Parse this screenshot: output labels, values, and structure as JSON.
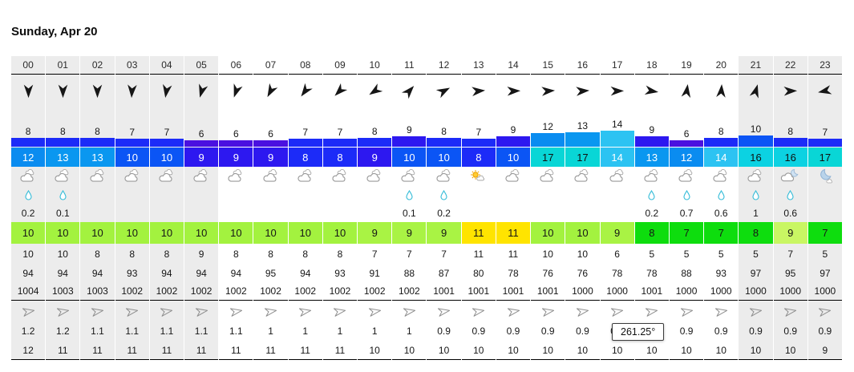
{
  "title": "Sunday, Apr 20",
  "tooltip": "261.25°",
  "palette": {
    "night_bg": "#ececec",
    "drop_color": "#35bcd8",
    "wind_speed_colors": {
      "6": "#4a10e0",
      "7": "#1c2bf8",
      "8": "#1c2bf8",
      "9": "#2d18f0",
      "10": "#0b55f5",
      "12": "#0a8cf0",
      "13": "#0a97f0",
      "14": "#2cc3f2",
      "16": "#0cd2e2",
      "17": "#09d6d6"
    },
    "gust_dark_text_min": 16,
    "temp_colors": {
      "7": "#0edd0e",
      "8": "#0edd0e",
      "9": "#a9f344",
      "10": "#a3f23f",
      "11": "#ffe400"
    }
  },
  "rows": {
    "wind_unit_note": "wind and gust in knots, bar height encodes wind speed",
    "rain_unit_note": "precipitation mm",
    "wave_note": "wave height m over wave period s"
  },
  "columns": [
    {
      "hour": "00",
      "night": true,
      "arrow_deg": 180,
      "wind": 8,
      "gust": 12,
      "cloud": "cloudy",
      "rain": "0.2",
      "temp": 10,
      "feels": 10,
      "humidity": 94,
      "pressure": 1004,
      "wave_deg": 80,
      "wave_height": "1.2",
      "wave_period": 12
    },
    {
      "hour": "01",
      "night": true,
      "arrow_deg": 180,
      "wind": 8,
      "gust": 13,
      "cloud": "cloudy",
      "rain": "0.1",
      "temp": 10,
      "feels": 10,
      "humidity": 94,
      "pressure": 1003,
      "wave_deg": 80,
      "wave_height": "1.2",
      "wave_period": 11
    },
    {
      "hour": "02",
      "night": true,
      "arrow_deg": 180,
      "wind": 8,
      "gust": 13,
      "cloud": "cloudy",
      "rain": "",
      "temp": 10,
      "feels": 8,
      "humidity": 94,
      "pressure": 1003,
      "wave_deg": 80,
      "wave_height": "1.1",
      "wave_period": 11
    },
    {
      "hour": "03",
      "night": true,
      "arrow_deg": 183,
      "wind": 7,
      "gust": 10,
      "cloud": "cloudy",
      "rain": "",
      "temp": 10,
      "feels": 8,
      "humidity": 93,
      "pressure": 1002,
      "wave_deg": 80,
      "wave_height": "1.1",
      "wave_period": 11
    },
    {
      "hour": "04",
      "night": true,
      "arrow_deg": 189,
      "wind": 7,
      "gust": 10,
      "cloud": "cloudy",
      "rain": "",
      "temp": 10,
      "feels": 8,
      "humidity": 94,
      "pressure": 1002,
      "wave_deg": 80,
      "wave_height": "1.1",
      "wave_period": 11
    },
    {
      "hour": "05",
      "night": true,
      "arrow_deg": 196,
      "wind": 6,
      "gust": 9,
      "cloud": "cloudy",
      "rain": "",
      "temp": 10,
      "feels": 9,
      "humidity": 94,
      "pressure": 1002,
      "wave_deg": 80,
      "wave_height": "1.1",
      "wave_period": 11
    },
    {
      "hour": "06",
      "night": false,
      "arrow_deg": 199,
      "wind": 6,
      "gust": 9,
      "cloud": "cloudy",
      "rain": "",
      "temp": 10,
      "feels": 8,
      "humidity": 94,
      "pressure": 1002,
      "wave_deg": 80,
      "wave_height": "1.1",
      "wave_period": 11
    },
    {
      "hour": "07",
      "night": false,
      "arrow_deg": 208,
      "wind": 6,
      "gust": 9,
      "cloud": "cloudy",
      "rain": "",
      "temp": 10,
      "feels": 8,
      "humidity": 95,
      "pressure": 1002,
      "wave_deg": 80,
      "wave_height": "1",
      "wave_period": 11
    },
    {
      "hour": "08",
      "night": false,
      "arrow_deg": 216,
      "wind": 7,
      "gust": 8,
      "cloud": "cloudy",
      "rain": "",
      "temp": 10,
      "feels": 8,
      "humidity": 94,
      "pressure": 1002,
      "wave_deg": 80,
      "wave_height": "1",
      "wave_period": 11
    },
    {
      "hour": "09",
      "night": false,
      "arrow_deg": 225,
      "wind": 7,
      "gust": 8,
      "cloud": "cloudy",
      "rain": "",
      "temp": 10,
      "feels": 8,
      "humidity": 93,
      "pressure": 1002,
      "wave_deg": 80,
      "wave_height": "1",
      "wave_period": 11
    },
    {
      "hour": "10",
      "night": false,
      "arrow_deg": 236,
      "wind": 8,
      "gust": 9,
      "cloud": "cloudy",
      "rain": "",
      "temp": 9,
      "feels": 7,
      "humidity": 91,
      "pressure": 1002,
      "wave_deg": 80,
      "wave_height": "1",
      "wave_period": 10
    },
    {
      "hour": "11",
      "night": false,
      "arrow_deg": 42,
      "wind": 9,
      "gust": 10,
      "cloud": "cloudy",
      "rain": "0.1",
      "temp": 9,
      "feels": 7,
      "humidity": 88,
      "pressure": 1002,
      "wave_deg": 80,
      "wave_height": "1",
      "wave_period": 10
    },
    {
      "hour": "12",
      "night": false,
      "arrow_deg": 62,
      "wind": 8,
      "gust": 10,
      "cloud": "cloudy",
      "rain": "0.2",
      "temp": 9,
      "feels": 7,
      "humidity": 87,
      "pressure": 1001,
      "wave_deg": 80,
      "wave_height": "0.9",
      "wave_period": 10
    },
    {
      "hour": "13",
      "night": false,
      "arrow_deg": 85,
      "wind": 7,
      "gust": 8,
      "cloud": "partly-sunny",
      "rain": "",
      "temp": 11,
      "feels": 11,
      "humidity": 80,
      "pressure": 1001,
      "wave_deg": 80,
      "wave_height": "0.9",
      "wave_period": 10
    },
    {
      "hour": "14",
      "night": false,
      "arrow_deg": 88,
      "wind": 9,
      "gust": 10,
      "cloud": "cloudy",
      "rain": "",
      "temp": 11,
      "feels": 11,
      "humidity": 78,
      "pressure": 1001,
      "wave_deg": 80,
      "wave_height": "0.9",
      "wave_period": 10
    },
    {
      "hour": "15",
      "night": false,
      "arrow_deg": 86,
      "wind": 12,
      "gust": 17,
      "cloud": "cloudy",
      "rain": "",
      "temp": 10,
      "feels": 10,
      "humidity": 76,
      "pressure": 1001,
      "wave_deg": 80,
      "wave_height": "0.9",
      "wave_period": 10
    },
    {
      "hour": "16",
      "night": false,
      "arrow_deg": 86,
      "wind": 13,
      "gust": 17,
      "cloud": "cloudy",
      "rain": "",
      "temp": 10,
      "feels": 10,
      "humidity": 76,
      "pressure": 1000,
      "wave_deg": 80,
      "wave_height": "0.9",
      "wave_period": 10
    },
    {
      "hour": "17",
      "night": false,
      "arrow_deg": 89,
      "wind": 14,
      "gust": 14,
      "cloud": "cloudy",
      "rain": "",
      "temp": 9,
      "feels": 6,
      "humidity": 78,
      "pressure": 1000,
      "wave_deg": 80,
      "wave_height": "0.9",
      "wave_period": 10
    },
    {
      "hour": "18",
      "night": false,
      "arrow_deg": 99,
      "wind": 9,
      "gust": 13,
      "cloud": "cloudy",
      "rain": "0.2",
      "temp": 8,
      "feels": 5,
      "humidity": 78,
      "pressure": 1001,
      "wave_deg": 80,
      "wave_height": "0.9",
      "wave_period": 10
    },
    {
      "hour": "19",
      "night": false,
      "arrow_deg": 8,
      "wind": 6,
      "gust": 12,
      "cloud": "cloudy",
      "rain": "0.7",
      "temp": 7,
      "feels": 5,
      "humidity": 88,
      "pressure": 1000,
      "wave_deg": 80,
      "wave_height": "0.9",
      "wave_period": 10
    },
    {
      "hour": "20",
      "night": false,
      "arrow_deg": 4,
      "wind": 8,
      "gust": 14,
      "cloud": "cloudy",
      "rain": "0.6",
      "temp": 7,
      "feels": 5,
      "humidity": 93,
      "pressure": 1000,
      "wave_deg": 80,
      "wave_height": "0.9",
      "wave_period": 10
    },
    {
      "hour": "21",
      "night": true,
      "arrow_deg": 16,
      "wind": 10,
      "gust": 16,
      "cloud": "cloudy",
      "rain": "1",
      "temp": 8,
      "feels": 5,
      "humidity": 97,
      "pressure": 1000,
      "wave_deg": 80,
      "wave_height": "0.9",
      "wave_period": 10
    },
    {
      "hour": "22",
      "night": true,
      "arrow_deg": 88,
      "wind": 8,
      "gust": 16,
      "cloud": "cloudy-moon",
      "rain": "0.6",
      "temp": 9,
      "temp_color": "#c9f663",
      "feels": 7,
      "humidity": 95,
      "pressure": 1000,
      "wave_deg": 80,
      "wave_height": "0.9",
      "wave_period": 10
    },
    {
      "hour": "23",
      "night": true,
      "arrow_deg": 258,
      "wind": 7,
      "gust": 17,
      "cloud": "moon",
      "rain": "",
      "temp": 7,
      "feels": 5,
      "humidity": 97,
      "pressure": 1000,
      "wave_deg": 80,
      "wave_height": "0.9",
      "wave_period": 9
    }
  ]
}
